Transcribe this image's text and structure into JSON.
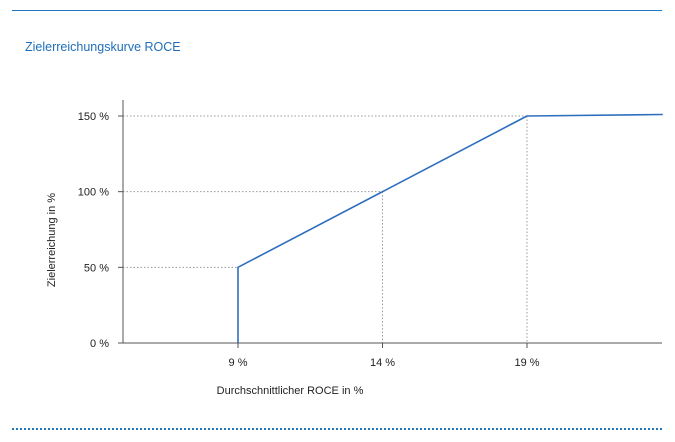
{
  "page": {
    "title": "Zielerreichungskurve ROCE",
    "accent_color": "#1f77c1"
  },
  "chart_data": {
    "type": "line",
    "title": "Zielerreichungskurve ROCE",
    "xlabel": "Durchschnittlicher ROCE in %",
    "ylabel": "Zielerreichung in %",
    "x_ticks": [
      {
        "value": 9,
        "label": "9 %"
      },
      {
        "value": 14,
        "label": "14 %"
      },
      {
        "value": 19,
        "label": "19 %"
      }
    ],
    "y_ticks": [
      {
        "value": 0,
        "label": "0 %"
      },
      {
        "value": 50,
        "label": "50 %"
      },
      {
        "value": 100,
        "label": "100 %"
      },
      {
        "value": 150,
        "label": "150 %"
      }
    ],
    "xlim": [
      5,
      23.7
    ],
    "ylim": [
      0,
      160
    ],
    "series": [
      {
        "name": "",
        "color": "#2e6fbd",
        "points": [
          {
            "x": 9,
            "y": 0
          },
          {
            "x": 9,
            "y": 50
          },
          {
            "x": 14,
            "y": 100
          },
          {
            "x": 19,
            "y": 150
          },
          {
            "x": 23.7,
            "y": 151
          }
        ]
      }
    ],
    "reference_lines": [
      {
        "x": 9,
        "y": 50
      },
      {
        "x": 14,
        "y": 100
      },
      {
        "x": 19,
        "y": 150
      }
    ],
    "grid": false,
    "legend": "none"
  }
}
